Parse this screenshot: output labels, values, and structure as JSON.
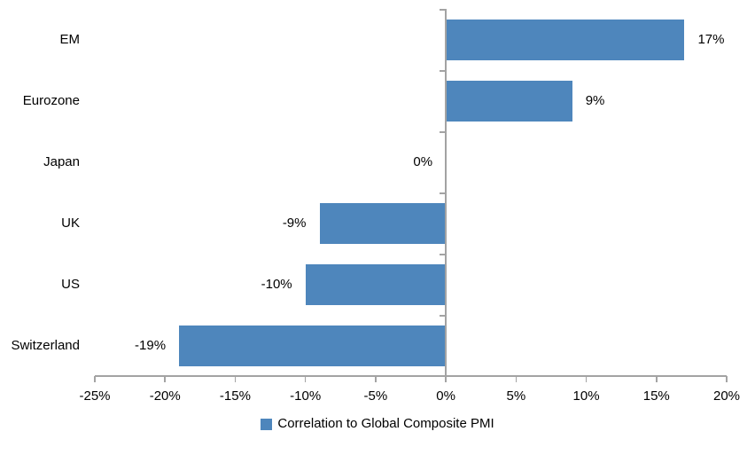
{
  "chart_data": {
    "type": "bar",
    "orientation": "horizontal",
    "title": "",
    "xlabel": "",
    "ylabel": "",
    "categories": [
      "EM",
      "Eurozone",
      "Japan",
      "UK",
      "US",
      "Switzerland"
    ],
    "series": [
      {
        "name": "Correlation to Global Composite PMI",
        "values": [
          17,
          9,
          0,
          -9,
          -10,
          -19
        ],
        "labels": [
          "17%",
          "9%",
          "0%",
          "-9%",
          "-10%",
          "-19%"
        ],
        "color": "#4E86BC"
      }
    ],
    "xlim": [
      -25,
      20
    ],
    "x_ticks": [
      -25,
      -20,
      -15,
      -10,
      -5,
      0,
      5,
      10,
      15,
      20
    ],
    "x_tick_labels": [
      "-25%",
      "-20%",
      "-15%",
      "-10%",
      "-5%",
      "0%",
      "5%",
      "10%",
      "15%",
      "20%"
    ],
    "grid": false,
    "legend_position": "bottom",
    "axis_color": "#A3A3A3",
    "text_color": "#000000",
    "background": "#FFFFFF"
  },
  "legend": {
    "label": "Correlation to Global Composite PMI",
    "marker_color": "#4E86BC"
  }
}
